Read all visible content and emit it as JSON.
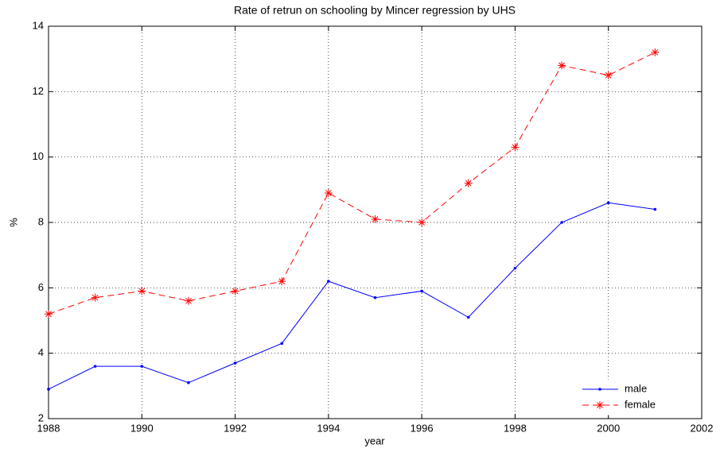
{
  "chart_data": {
    "type": "line",
    "title": "Rate of retrun on schooling by Mincer regression by UHS",
    "xlabel": "year",
    "ylabel": "%",
    "x": [
      1988,
      1989,
      1990,
      1991,
      1992,
      1993,
      1994,
      1995,
      1996,
      1997,
      1998,
      1999,
      2000,
      2001
    ],
    "series": [
      {
        "name": "male",
        "color": "#0000ff",
        "line_style": "solid",
        "marker": "dot",
        "values": [
          2.9,
          3.6,
          3.6,
          3.1,
          3.7,
          4.3,
          6.2,
          5.7,
          5.9,
          5.1,
          6.6,
          8.0,
          8.6,
          8.4
        ]
      },
      {
        "name": "female",
        "color": "#ff0000",
        "line_style": "dashed",
        "marker": "star",
        "values": [
          5.2,
          5.7,
          5.9,
          5.6,
          5.9,
          6.2,
          8.9,
          8.1,
          8.0,
          9.2,
          10.3,
          12.8,
          12.5,
          13.2
        ]
      }
    ],
    "xlim": [
      1988,
      2002
    ],
    "xticks": [
      1988,
      1990,
      1992,
      1994,
      1996,
      1998,
      2000,
      2002
    ],
    "ylim": [
      2,
      14
    ],
    "yticks": [
      2,
      4,
      6,
      8,
      10,
      12,
      14
    ],
    "grid": true,
    "legend": "lower right"
  }
}
